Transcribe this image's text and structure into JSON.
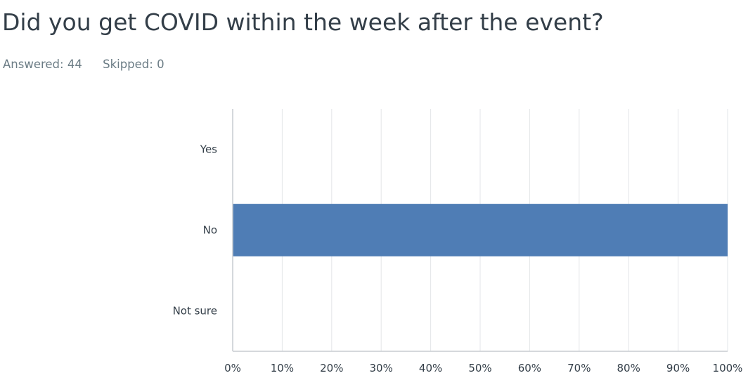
{
  "question": {
    "title": "Did you get COVID within the week after the event?",
    "answered_label": "Answered: 44",
    "skipped_label": "Skipped: 0"
  },
  "colors": {
    "bar": "#4f7db5",
    "grid": "#e3e5e8",
    "axis": "#c7ccd1",
    "text": "#333e48",
    "muted": "#6b7c85"
  },
  "chart_data": {
    "type": "bar",
    "orientation": "horizontal",
    "categories": [
      "Yes",
      "No",
      "Not sure"
    ],
    "values": [
      0,
      100,
      0
    ],
    "unit": "%",
    "xlim": [
      0,
      100
    ],
    "ticks": [
      0,
      10,
      20,
      30,
      40,
      50,
      60,
      70,
      80,
      90,
      100
    ],
    "tick_labels": [
      "0%",
      "10%",
      "20%",
      "30%",
      "40%",
      "50%",
      "60%",
      "70%",
      "80%",
      "90%",
      "100%"
    ],
    "grid": true,
    "legend": "none"
  }
}
